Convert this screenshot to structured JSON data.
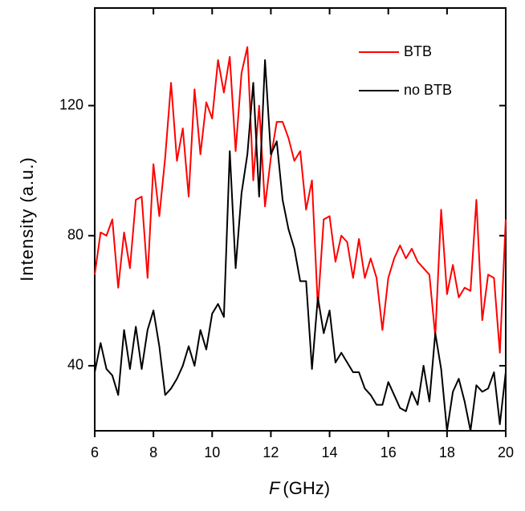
{
  "chart_data": {
    "type": "line",
    "x_label": {
      "variable": "F",
      "unit": "(GHz)"
    },
    "y_label": "Intensity (a.u.)",
    "x": [
      6,
      6.2,
      6.4,
      6.6,
      6.8,
      7,
      7.2,
      7.4,
      7.6,
      7.8,
      8,
      8.2,
      8.4,
      8.6,
      8.8,
      9,
      9.2,
      9.4,
      9.6,
      9.8,
      10,
      10.2,
      10.4,
      10.6,
      10.8,
      11,
      11.2,
      11.4,
      11.6,
      11.8,
      12,
      12.2,
      12.4,
      12.6,
      12.8,
      13,
      13.2,
      13.4,
      13.6,
      13.8,
      14,
      14.2,
      14.4,
      14.6,
      14.8,
      15,
      15.2,
      15.4,
      15.6,
      15.8,
      16,
      16.2,
      16.4,
      16.6,
      16.8,
      17,
      17.2,
      17.4,
      17.6,
      17.8,
      18,
      18.2,
      18.4,
      18.6,
      18.8,
      19,
      19.2,
      19.4,
      19.6,
      19.8,
      20
    ],
    "series": [
      {
        "name": "BTB",
        "color": "#ff0000",
        "values": [
          68,
          81,
          80,
          85,
          64,
          81,
          70,
          91,
          92,
          67,
          102,
          86,
          104,
          127,
          103,
          113,
          92,
          125,
          105,
          121,
          116,
          134,
          124,
          135,
          106,
          130,
          138,
          97,
          120,
          89,
          104,
          115,
          115,
          110,
          103,
          106,
          88,
          97,
          58,
          85,
          86,
          72,
          80,
          78,
          67,
          79,
          67,
          73,
          67,
          51,
          67,
          73,
          77,
          73,
          76,
          72,
          70,
          68,
          49,
          88,
          62,
          71,
          61,
          64,
          63,
          91,
          54,
          68,
          67,
          44,
          85
        ]
      },
      {
        "name": "no BTB",
        "color": "#000000",
        "values": [
          38,
          47,
          39,
          37,
          31,
          51,
          39,
          52,
          39,
          51,
          57,
          46,
          31,
          33,
          36,
          40,
          46,
          40,
          51,
          45,
          56,
          59,
          55,
          106,
          70,
          93,
          105,
          127,
          92,
          134,
          105,
          109,
          91,
          82,
          76,
          66,
          66,
          39,
          61,
          50,
          57,
          41,
          44,
          41,
          38,
          38,
          33,
          31,
          28,
          28,
          35,
          31,
          27,
          26,
          32,
          28,
          40,
          29,
          50,
          39,
          20,
          32,
          36,
          29,
          20,
          34,
          32,
          33,
          38,
          22,
          38
        ]
      }
    ],
    "xlim": [
      6,
      20
    ],
    "xticks": [
      6,
      8,
      10,
      12,
      14,
      16,
      18,
      20
    ],
    "ylim": [
      20,
      150
    ],
    "yticks": [
      40,
      80,
      120
    ],
    "legend": "upper right",
    "grid": false
  }
}
